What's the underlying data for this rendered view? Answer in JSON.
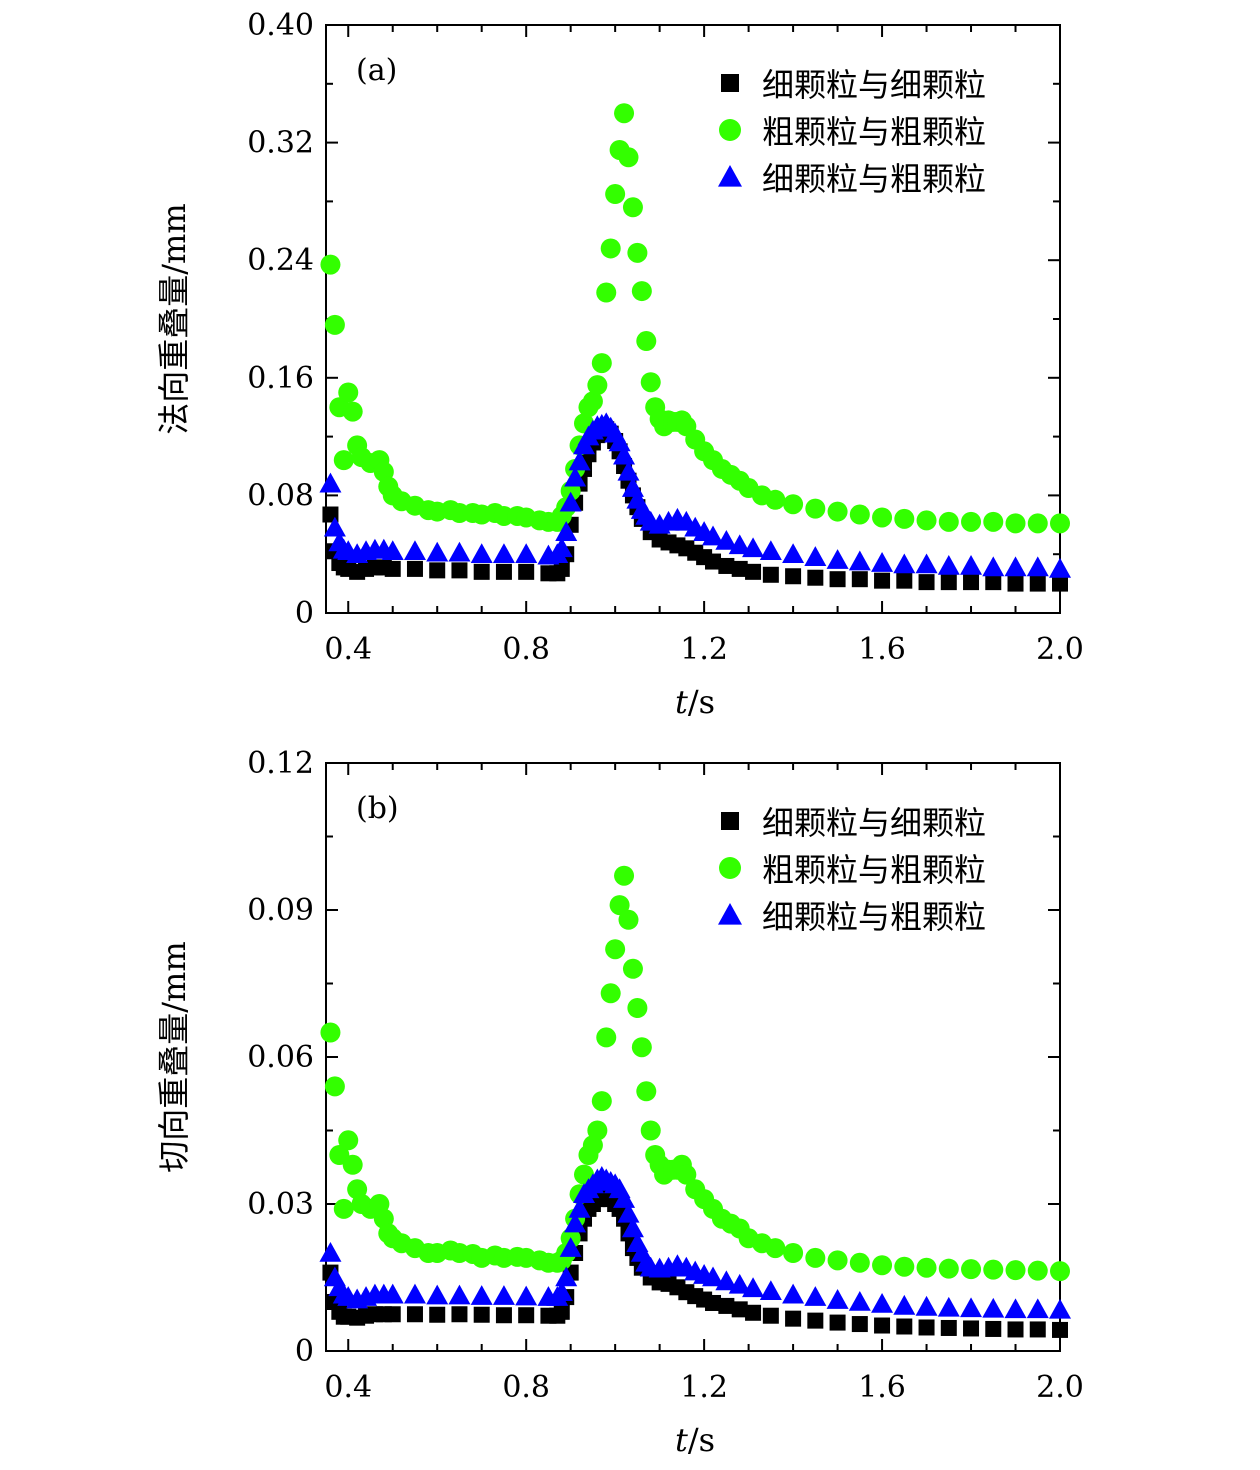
{
  "chart_data": [
    {
      "type": "scatter",
      "panel_label": "(a)",
      "ylabel": "法向重叠量/mm",
      "xlabel_var": "t",
      "xlabel_unit": "/s",
      "xlim": [
        0.35,
        2.0
      ],
      "ylim": [
        0,
        0.4
      ],
      "xticks": [
        0.4,
        0.8,
        1.2,
        1.6,
        2.0
      ],
      "xtick_labels": [
        "0.4",
        "0.8",
        "1.2",
        "1.6",
        "2.0"
      ],
      "yticks": [
        0,
        0.08,
        0.16,
        0.24,
        0.32,
        0.4
      ],
      "ytick_labels": [
        "0",
        "0.08",
        "0.16",
        "0.24",
        "0.32",
        "0.40"
      ],
      "legend_position": "top-right",
      "series": [
        {
          "name": "细颗粒与细颗粒",
          "marker": "square",
          "color": "#000000",
          "x": [
            0.36,
            0.37,
            0.38,
            0.39,
            0.4,
            0.42,
            0.44,
            0.46,
            0.48,
            0.5,
            0.55,
            0.6,
            0.65,
            0.7,
            0.75,
            0.8,
            0.85,
            0.87,
            0.88,
            0.89,
            0.9,
            0.91,
            0.92,
            0.93,
            0.94,
            0.95,
            0.96,
            0.97,
            0.98,
            0.99,
            1.0,
            1.01,
            1.02,
            1.03,
            1.04,
            1.05,
            1.06,
            1.08,
            1.1,
            1.12,
            1.14,
            1.16,
            1.18,
            1.2,
            1.22,
            1.25,
            1.28,
            1.31,
            1.35,
            1.4,
            1.45,
            1.5,
            1.55,
            1.6,
            1.65,
            1.7,
            1.75,
            1.8,
            1.85,
            1.9,
            1.95,
            2.0
          ],
          "y": [
            0.067,
            0.042,
            0.034,
            0.031,
            0.03,
            0.028,
            0.03,
            0.031,
            0.031,
            0.03,
            0.03,
            0.029,
            0.029,
            0.028,
            0.028,
            0.028,
            0.027,
            0.027,
            0.03,
            0.04,
            0.06,
            0.075,
            0.088,
            0.098,
            0.108,
            0.116,
            0.121,
            0.124,
            0.125,
            0.122,
            0.117,
            0.11,
            0.1,
            0.09,
            0.08,
            0.072,
            0.064,
            0.055,
            0.05,
            0.048,
            0.046,
            0.044,
            0.041,
            0.038,
            0.035,
            0.032,
            0.03,
            0.028,
            0.026,
            0.025,
            0.024,
            0.023,
            0.023,
            0.022,
            0.022,
            0.021,
            0.021,
            0.021,
            0.021,
            0.02,
            0.02,
            0.02
          ]
        },
        {
          "name": "粗颗粒与粗颗粒",
          "marker": "circle",
          "color": "#33ff00",
          "x": [
            0.36,
            0.37,
            0.38,
            0.39,
            0.4,
            0.41,
            0.42,
            0.43,
            0.45,
            0.47,
            0.48,
            0.49,
            0.5,
            0.52,
            0.55,
            0.58,
            0.6,
            0.63,
            0.65,
            0.68,
            0.7,
            0.73,
            0.75,
            0.78,
            0.8,
            0.83,
            0.85,
            0.87,
            0.88,
            0.89,
            0.9,
            0.91,
            0.92,
            0.93,
            0.94,
            0.95,
            0.96,
            0.97,
            0.98,
            0.99,
            1.0,
            1.01,
            1.02,
            1.03,
            1.04,
            1.05,
            1.06,
            1.07,
            1.08,
            1.09,
            1.1,
            1.11,
            1.12,
            1.13,
            1.14,
            1.15,
            1.16,
            1.18,
            1.2,
            1.22,
            1.24,
            1.26,
            1.28,
            1.3,
            1.33,
            1.36,
            1.4,
            1.45,
            1.5,
            1.55,
            1.6,
            1.65,
            1.7,
            1.75,
            1.8,
            1.85,
            1.9,
            1.95,
            2.0
          ],
          "y": [
            0.237,
            0.196,
            0.14,
            0.104,
            0.15,
            0.137,
            0.114,
            0.106,
            0.102,
            0.104,
            0.096,
            0.086,
            0.08,
            0.076,
            0.073,
            0.07,
            0.069,
            0.07,
            0.068,
            0.068,
            0.067,
            0.068,
            0.066,
            0.066,
            0.065,
            0.063,
            0.062,
            0.062,
            0.066,
            0.072,
            0.083,
            0.098,
            0.114,
            0.129,
            0.14,
            0.144,
            0.155,
            0.17,
            0.218,
            0.248,
            0.285,
            0.315,
            0.34,
            0.31,
            0.276,
            0.245,
            0.219,
            0.185,
            0.157,
            0.14,
            0.132,
            0.127,
            0.131,
            0.13,
            0.13,
            0.131,
            0.127,
            0.118,
            0.11,
            0.104,
            0.098,
            0.094,
            0.09,
            0.085,
            0.08,
            0.077,
            0.074,
            0.071,
            0.069,
            0.067,
            0.065,
            0.064,
            0.063,
            0.062,
            0.062,
            0.062,
            0.061,
            0.061,
            0.061
          ]
        },
        {
          "name": "细颗粒与粗颗粒",
          "marker": "triangle",
          "color": "#0000ff",
          "x": [
            0.36,
            0.37,
            0.38,
            0.39,
            0.4,
            0.42,
            0.44,
            0.46,
            0.48,
            0.5,
            0.55,
            0.6,
            0.65,
            0.7,
            0.75,
            0.8,
            0.85,
            0.87,
            0.88,
            0.89,
            0.9,
            0.91,
            0.92,
            0.93,
            0.94,
            0.95,
            0.96,
            0.97,
            0.98,
            0.99,
            1.0,
            1.01,
            1.02,
            1.03,
            1.04,
            1.05,
            1.06,
            1.07,
            1.08,
            1.1,
            1.12,
            1.14,
            1.16,
            1.18,
            1.2,
            1.22,
            1.25,
            1.28,
            1.31,
            1.35,
            1.4,
            1.45,
            1.5,
            1.55,
            1.6,
            1.65,
            1.7,
            1.75,
            1.8,
            1.85,
            1.9,
            1.95,
            2.0
          ],
          "y": [
            0.088,
            0.058,
            0.048,
            0.043,
            0.042,
            0.04,
            0.042,
            0.043,
            0.043,
            0.042,
            0.042,
            0.041,
            0.041,
            0.04,
            0.04,
            0.04,
            0.039,
            0.04,
            0.044,
            0.055,
            0.075,
            0.092,
            0.103,
            0.114,
            0.12,
            0.124,
            0.127,
            0.128,
            0.129,
            0.126,
            0.122,
            0.116,
            0.107,
            0.096,
            0.085,
            0.077,
            0.07,
            0.066,
            0.062,
            0.06,
            0.062,
            0.064,
            0.062,
            0.058,
            0.055,
            0.052,
            0.049,
            0.046,
            0.044,
            0.042,
            0.04,
            0.038,
            0.036,
            0.035,
            0.034,
            0.033,
            0.033,
            0.032,
            0.032,
            0.031,
            0.031,
            0.031,
            0.03
          ]
        }
      ]
    },
    {
      "type": "scatter",
      "panel_label": "(b)",
      "ylabel": "切向重叠量/mm",
      "xlabel_var": "t",
      "xlabel_unit": "/s",
      "xlim": [
        0.35,
        2.0
      ],
      "ylim": [
        0,
        0.12
      ],
      "xticks": [
        0.4,
        0.8,
        1.2,
        1.6,
        2.0
      ],
      "xtick_labels": [
        "0.4",
        "0.8",
        "1.2",
        "1.6",
        "2.0"
      ],
      "yticks": [
        0,
        0.03,
        0.06,
        0.09,
        0.12
      ],
      "ytick_labels": [
        "0",
        "0.03",
        "0.06",
        "0.09",
        "0.12"
      ],
      "legend_position": "top-right",
      "series": [
        {
          "name": "细颗粒与细颗粒",
          "marker": "square",
          "color": "#000000",
          "x": [
            0.36,
            0.37,
            0.38,
            0.39,
            0.4,
            0.42,
            0.44,
            0.46,
            0.48,
            0.5,
            0.55,
            0.6,
            0.65,
            0.7,
            0.75,
            0.8,
            0.85,
            0.87,
            0.88,
            0.89,
            0.9,
            0.91,
            0.92,
            0.93,
            0.94,
            0.95,
            0.96,
            0.97,
            0.98,
            0.99,
            1.0,
            1.01,
            1.02,
            1.03,
            1.04,
            1.05,
            1.06,
            1.08,
            1.1,
            1.12,
            1.14,
            1.16,
            1.18,
            1.2,
            1.22,
            1.25,
            1.28,
            1.31,
            1.35,
            1.4,
            1.45,
            1.5,
            1.55,
            1.6,
            1.65,
            1.7,
            1.75,
            1.8,
            1.85,
            1.9,
            1.95,
            2.0
          ],
          "y": [
            0.016,
            0.01,
            0.008,
            0.007,
            0.007,
            0.0068,
            0.0072,
            0.0075,
            0.0075,
            0.0075,
            0.0075,
            0.0074,
            0.0075,
            0.0074,
            0.0073,
            0.0073,
            0.0072,
            0.0072,
            0.008,
            0.011,
            0.016,
            0.02,
            0.024,
            0.027,
            0.029,
            0.03,
            0.031,
            0.032,
            0.032,
            0.031,
            0.03,
            0.029,
            0.027,
            0.024,
            0.021,
            0.019,
            0.017,
            0.015,
            0.014,
            0.0137,
            0.013,
            0.012,
            0.0112,
            0.0105,
            0.0098,
            0.0092,
            0.0085,
            0.0078,
            0.0072,
            0.0066,
            0.0062,
            0.0058,
            0.0055,
            0.0052,
            0.005,
            0.0048,
            0.0047,
            0.0046,
            0.0045,
            0.0044,
            0.0044,
            0.0043
          ]
        },
        {
          "name": "粗颗粒与粗颗粒",
          "marker": "circle",
          "color": "#33ff00",
          "x": [
            0.36,
            0.37,
            0.38,
            0.39,
            0.4,
            0.41,
            0.42,
            0.43,
            0.45,
            0.47,
            0.48,
            0.49,
            0.5,
            0.52,
            0.55,
            0.58,
            0.6,
            0.63,
            0.65,
            0.68,
            0.7,
            0.73,
            0.75,
            0.78,
            0.8,
            0.83,
            0.85,
            0.87,
            0.88,
            0.89,
            0.9,
            0.91,
            0.92,
            0.93,
            0.94,
            0.95,
            0.96,
            0.97,
            0.98,
            0.99,
            1.0,
            1.01,
            1.02,
            1.03,
            1.04,
            1.05,
            1.06,
            1.07,
            1.08,
            1.09,
            1.1,
            1.11,
            1.12,
            1.13,
            1.14,
            1.15,
            1.16,
            1.18,
            1.2,
            1.22,
            1.24,
            1.26,
            1.28,
            1.3,
            1.33,
            1.36,
            1.4,
            1.45,
            1.5,
            1.55,
            1.6,
            1.65,
            1.7,
            1.75,
            1.8,
            1.85,
            1.9,
            1.95,
            2.0
          ],
          "y": [
            0.065,
            0.054,
            0.04,
            0.029,
            0.043,
            0.038,
            0.033,
            0.03,
            0.029,
            0.03,
            0.027,
            0.024,
            0.023,
            0.022,
            0.021,
            0.02,
            0.02,
            0.0205,
            0.02,
            0.0198,
            0.019,
            0.0195,
            0.019,
            0.0192,
            0.019,
            0.0185,
            0.018,
            0.018,
            0.0185,
            0.02,
            0.023,
            0.027,
            0.032,
            0.036,
            0.04,
            0.042,
            0.045,
            0.051,
            0.064,
            0.073,
            0.082,
            0.091,
            0.097,
            0.088,
            0.078,
            0.07,
            0.062,
            0.053,
            0.045,
            0.04,
            0.038,
            0.036,
            0.037,
            0.037,
            0.037,
            0.038,
            0.036,
            0.033,
            0.031,
            0.029,
            0.027,
            0.026,
            0.025,
            0.023,
            0.022,
            0.021,
            0.02,
            0.019,
            0.0185,
            0.018,
            0.0175,
            0.0172,
            0.017,
            0.0168,
            0.0167,
            0.0166,
            0.0165,
            0.0164,
            0.0163
          ]
        },
        {
          "name": "细颗粒与粗颗粒",
          "marker": "triangle",
          "color": "#0000ff",
          "x": [
            0.36,
            0.37,
            0.38,
            0.39,
            0.4,
            0.42,
            0.44,
            0.46,
            0.48,
            0.5,
            0.55,
            0.6,
            0.65,
            0.7,
            0.75,
            0.8,
            0.85,
            0.87,
            0.88,
            0.89,
            0.9,
            0.91,
            0.92,
            0.93,
            0.94,
            0.95,
            0.96,
            0.97,
            0.98,
            0.99,
            1.0,
            1.01,
            1.02,
            1.03,
            1.04,
            1.05,
            1.06,
            1.07,
            1.08,
            1.1,
            1.12,
            1.14,
            1.16,
            1.18,
            1.2,
            1.22,
            1.25,
            1.28,
            1.31,
            1.35,
            1.4,
            1.45,
            1.5,
            1.55,
            1.6,
            1.65,
            1.7,
            1.75,
            1.8,
            1.85,
            1.9,
            1.95,
            2.0
          ],
          "y": [
            0.02,
            0.015,
            0.013,
            0.0115,
            0.011,
            0.0105,
            0.011,
            0.0115,
            0.0115,
            0.0115,
            0.0115,
            0.0113,
            0.0113,
            0.0112,
            0.0112,
            0.0111,
            0.011,
            0.011,
            0.012,
            0.015,
            0.021,
            0.026,
            0.029,
            0.032,
            0.033,
            0.034,
            0.035,
            0.0355,
            0.035,
            0.0345,
            0.034,
            0.033,
            0.031,
            0.028,
            0.025,
            0.022,
            0.02,
            0.018,
            0.017,
            0.0168,
            0.017,
            0.0175,
            0.017,
            0.0162,
            0.0155,
            0.015,
            0.0142,
            0.0135,
            0.0128,
            0.0122,
            0.0115,
            0.011,
            0.0104,
            0.01,
            0.0096,
            0.0092,
            0.009,
            0.0088,
            0.0087,
            0.0086,
            0.0085,
            0.0085,
            0.0084
          ]
        }
      ]
    }
  ]
}
